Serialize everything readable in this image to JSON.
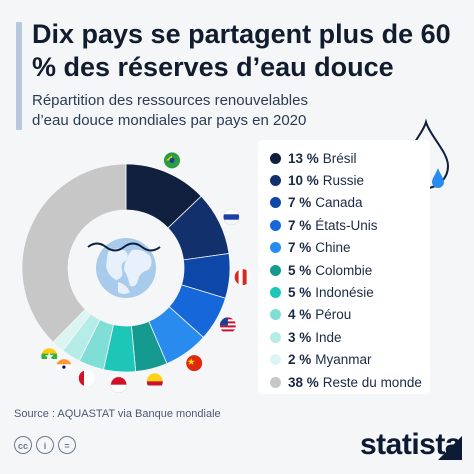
{
  "title": "Dix pays se partagent plus de 60 % des réserves d’eau douce",
  "subtitle": "Répartition des ressources renouvelables d’eau douce mondiales par pays en 2020",
  "source": "Source : AQUASTAT via Banque mondiale",
  "brand": "statista",
  "footer_icons": [
    "cc-icon",
    "person-icon",
    "equals-icon"
  ],
  "chart_data": {
    "type": "pie",
    "donut": true,
    "start_angle_deg": 0,
    "direction": "clockwise",
    "slices": [
      {
        "label": "Brésil",
        "value": 13,
        "display": "13 %",
        "color": "#0f1f3d",
        "flag": "brazil-flag"
      },
      {
        "label": "Russie",
        "value": 10,
        "display": "10 %",
        "color": "#12306b",
        "flag": "russia-flag"
      },
      {
        "label": "Canada",
        "value": 7,
        "display": "7 %",
        "color": "#0d47a8",
        "flag": "canada-flag"
      },
      {
        "label": "États-Unis",
        "value": 7,
        "display": "7 %",
        "color": "#1667d9",
        "flag": "usa-flag"
      },
      {
        "label": "Chine",
        "value": 7,
        "display": "7 %",
        "color": "#2a8bef",
        "flag": "china-flag"
      },
      {
        "label": "Colombie",
        "value": 5,
        "display": "5 %",
        "color": "#159a8f",
        "flag": "colombia-flag"
      },
      {
        "label": "Indonésie",
        "value": 5,
        "display": "5 %",
        "color": "#1ec6b7",
        "flag": "indonesia-flag"
      },
      {
        "label": "Pérou",
        "value": 4,
        "display": "4 %",
        "color": "#7fded6",
        "flag": "peru-flag"
      },
      {
        "label": "Inde",
        "value": 3,
        "display": "3 %",
        "color": "#b5ece7",
        "flag": "india-flag"
      },
      {
        "label": "Myanmar",
        "value": 2,
        "display": "2 %",
        "color": "#daf5f2",
        "flag": "myanmar-flag"
      },
      {
        "label": "Reste du monde",
        "value": 38,
        "display": "38 %",
        "color": "#c7c7c7"
      }
    ]
  }
}
